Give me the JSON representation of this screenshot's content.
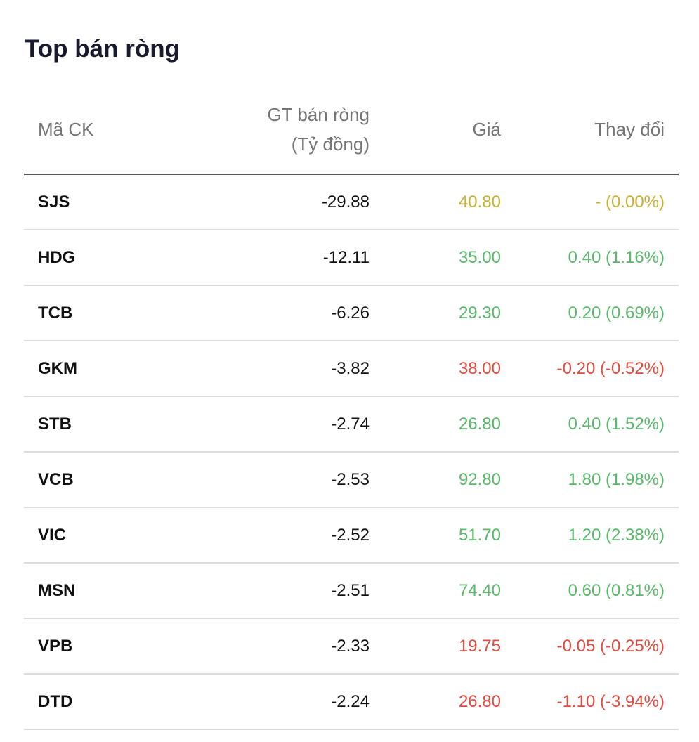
{
  "title": "Top bán ròng",
  "columns": {
    "code": "Mã CK",
    "value_line1": "GT bán ròng",
    "value_line2": "(Tỷ đồng)",
    "price": "Giá",
    "change": "Thay đổi"
  },
  "colors": {
    "reference": "#c9b030",
    "up": "#59b86a",
    "down": "#e24c3f"
  },
  "rows": [
    {
      "code": "SJS",
      "value": "-29.88",
      "price": "40.80",
      "change": "- (0.00%)",
      "status": "ref"
    },
    {
      "code": "HDG",
      "value": "-12.11",
      "price": "35.00",
      "change": "0.40 (1.16%)",
      "status": "up"
    },
    {
      "code": "TCB",
      "value": "-6.26",
      "price": "29.30",
      "change": "0.20 (0.69%)",
      "status": "up"
    },
    {
      "code": "GKM",
      "value": "-3.82",
      "price": "38.00",
      "change": "-0.20 (-0.52%)",
      "status": "down"
    },
    {
      "code": "STB",
      "value": "-2.74",
      "price": "26.80",
      "change": "0.40 (1.52%)",
      "status": "up"
    },
    {
      "code": "VCB",
      "value": "-2.53",
      "price": "92.80",
      "change": "1.80 (1.98%)",
      "status": "up"
    },
    {
      "code": "VIC",
      "value": "-2.52",
      "price": "51.70",
      "change": "1.20 (2.38%)",
      "status": "up"
    },
    {
      "code": "MSN",
      "value": "-2.51",
      "price": "74.40",
      "change": "0.60 (0.81%)",
      "status": "up"
    },
    {
      "code": "VPB",
      "value": "-2.33",
      "price": "19.75",
      "change": "-0.05 (-0.25%)",
      "status": "down"
    },
    {
      "code": "DTD",
      "value": "-2.24",
      "price": "26.80",
      "change": "-1.10 (-3.94%)",
      "status": "down"
    }
  ]
}
